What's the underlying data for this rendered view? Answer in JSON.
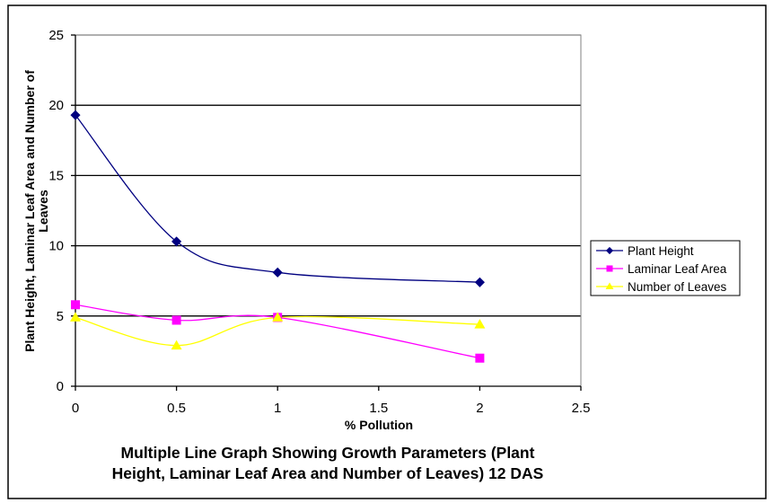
{
  "chart_data": {
    "type": "line",
    "title_lines": [
      "Multiple Line Graph Showing Growth Parameters (Plant",
      "Height, Laminar Leaf Area and Number of Leaves) 12 DAS"
    ],
    "xlabel": "% Pollution",
    "ylabel_lines": [
      "Plant Height, Laminar Leaf Area and Number of",
      "Leaves"
    ],
    "x": [
      0,
      0.5,
      1,
      2
    ],
    "xlim": [
      0,
      2.5
    ],
    "ylim": [
      0,
      25
    ],
    "xticks": [
      0,
      0.5,
      1,
      1.5,
      2,
      2.5
    ],
    "xtick_labels": [
      "0",
      "0.5",
      "1",
      "1.5",
      "2",
      "2.5"
    ],
    "yticks": [
      0,
      5,
      10,
      15,
      20,
      25
    ],
    "ytick_labels": [
      "0",
      "5",
      "10",
      "15",
      "20",
      "25"
    ],
    "grid": "horizontal major",
    "smoothed": true,
    "legend_position": "right",
    "series": [
      {
        "name": "Plant Height",
        "values": [
          19.3,
          10.3,
          8.1,
          7.4
        ],
        "color": "#000080",
        "marker": "diamond"
      },
      {
        "name": "Laminar Leaf Area",
        "values": [
          5.8,
          4.7,
          4.9,
          2.0
        ],
        "color": "#ff00ff",
        "marker": "square"
      },
      {
        "name": "Number of Leaves",
        "values": [
          4.9,
          2.9,
          4.9,
          4.4
        ],
        "color": "#ffff00",
        "marker": "triangle"
      }
    ]
  }
}
